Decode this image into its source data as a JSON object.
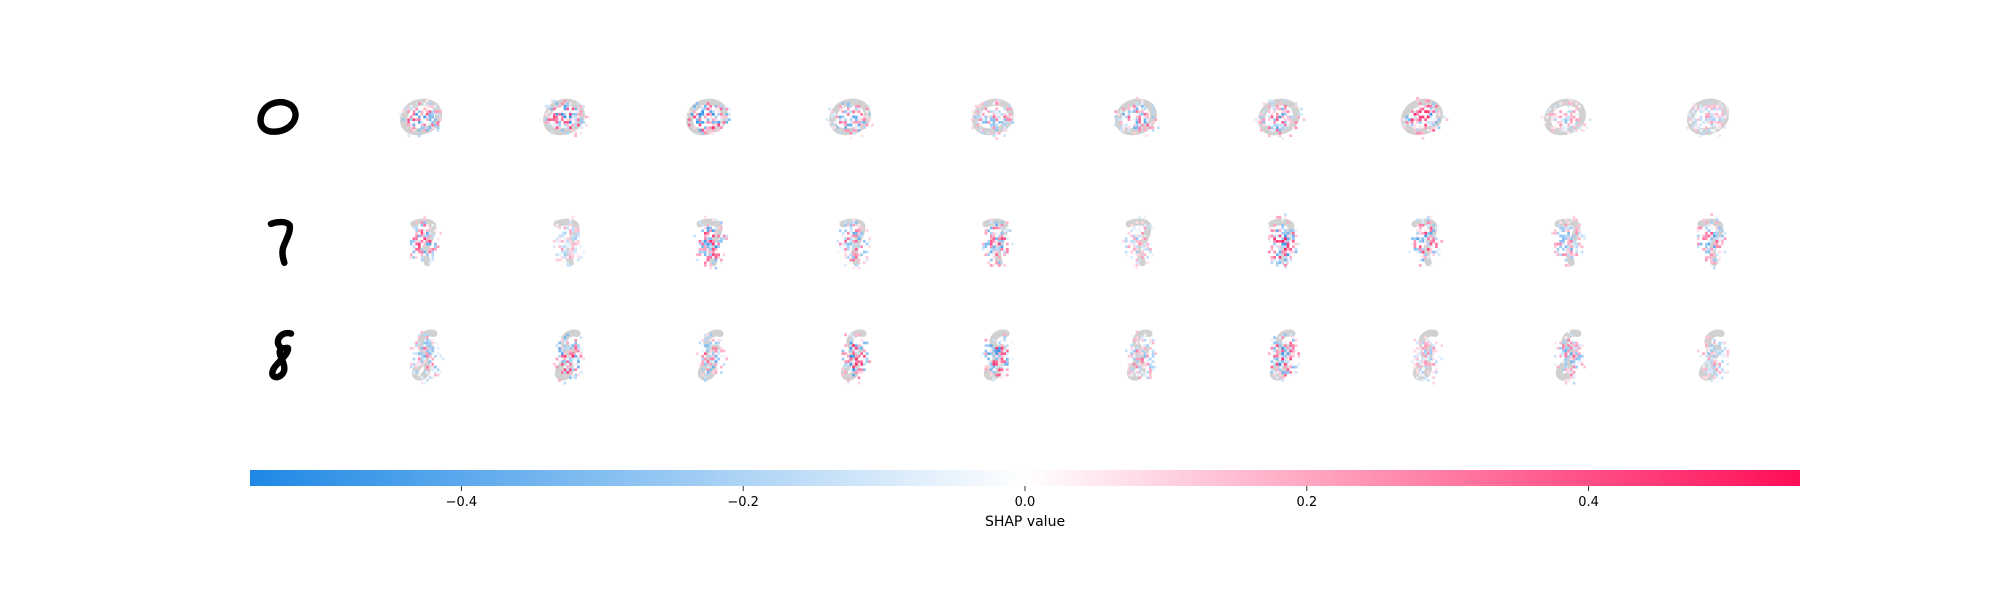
{
  "chart_data": {
    "type": "heatmap",
    "rows": [
      {
        "digit": "0",
        "explanation_count": 10
      },
      {
        "digit": "7",
        "explanation_count": 10
      },
      {
        "digit": "8",
        "explanation_count": 10
      }
    ],
    "colorbar": {
      "label": "SHAP value",
      "range": [
        -0.55,
        0.55
      ],
      "ticks": [
        -0.4,
        -0.2,
        0.0,
        0.2,
        0.4
      ],
      "tick_labels": [
        "−0.4",
        "−0.2",
        "0.0",
        "0.2",
        "0.4"
      ],
      "colors": {
        "negative": "#1e88e5",
        "zero": "#ffffff",
        "positive": "#ff0d57"
      }
    },
    "grid": false
  }
}
